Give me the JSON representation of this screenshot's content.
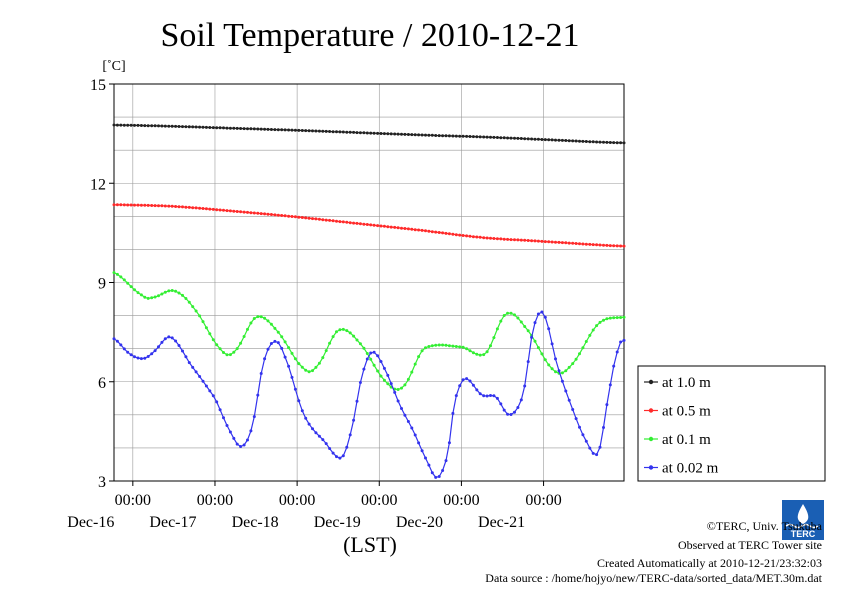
{
  "chart_data": {
    "type": "line",
    "title": "Soil Temperature / 2010-12-21",
    "ylabel": "[˚C]",
    "xlabel": "(LST)",
    "ylim": [
      3,
      15
    ],
    "xlim": [
      "2010-12-15 18:30",
      "2010-12-21 23:30"
    ],
    "yticks": [
      "15",
      "12",
      "9",
      "6",
      "3"
    ],
    "ytick_values": [
      15,
      12,
      9,
      6,
      3
    ],
    "xticks": [
      {
        "time": "2010-12-16 00:00",
        "label": "00:00",
        "date": "Dec-16"
      },
      {
        "time": "2010-12-17 00:00",
        "label": "00:00",
        "date": "Dec-17"
      },
      {
        "time": "2010-12-18 00:00",
        "label": "00:00",
        "date": "Dec-18"
      },
      {
        "time": "2010-12-19 00:00",
        "label": "00:00",
        "date": "Dec-19"
      },
      {
        "time": "2010-12-20 00:00",
        "label": "00:00",
        "date": "Dec-20"
      },
      {
        "time": "2010-12-21 00:00",
        "label": "00:00",
        "date": "Dec-21"
      }
    ],
    "grid": true,
    "legend_position": "right",
    "series": [
      {
        "name": "at 1.0 m",
        "color": "#222222",
        "points": [
          [
            "2010-12-15 18:30",
            13.76
          ],
          [
            "2010-12-16 12:00",
            13.72
          ],
          [
            "2010-12-17 06:00",
            13.66
          ],
          [
            "2010-12-18 00:00",
            13.6
          ],
          [
            "2010-12-18 18:00",
            13.53
          ],
          [
            "2010-12-19 12:00",
            13.46
          ],
          [
            "2010-12-20 06:00",
            13.4
          ],
          [
            "2010-12-21 00:00",
            13.32
          ],
          [
            "2010-12-21 23:30",
            13.22
          ]
        ]
      },
      {
        "name": "at 0.5 m",
        "color": "#ff2a2a",
        "points": [
          [
            "2010-12-15 18:30",
            11.35
          ],
          [
            "2010-12-16 12:00",
            11.3
          ],
          [
            "2010-12-17 06:00",
            11.15
          ],
          [
            "2010-12-18 00:00",
            10.98
          ],
          [
            "2010-12-18 18:00",
            10.78
          ],
          [
            "2010-12-19 12:00",
            10.58
          ],
          [
            "2010-12-20 06:00",
            10.36
          ],
          [
            "2010-12-21 00:00",
            10.24
          ],
          [
            "2010-12-21 23:30",
            10.1
          ]
        ]
      },
      {
        "name": "at 0.1 m",
        "color": "#33ee33",
        "points": [
          [
            "2010-12-15 18:30",
            9.3
          ],
          [
            "2010-12-16 03:00",
            8.6
          ],
          [
            "2010-12-16 06:00",
            8.55
          ],
          [
            "2010-12-16 12:00",
            8.75
          ],
          [
            "2010-12-16 18:00",
            8.2
          ],
          [
            "2010-12-17 02:00",
            6.95
          ],
          [
            "2010-12-17 06:00",
            6.95
          ],
          [
            "2010-12-17 12:00",
            7.95
          ],
          [
            "2010-12-17 18:00",
            7.55
          ],
          [
            "2010-12-18 02:00",
            6.4
          ],
          [
            "2010-12-18 06:00",
            6.5
          ],
          [
            "2010-12-18 12:00",
            7.55
          ],
          [
            "2010-12-18 18:00",
            7.2
          ],
          [
            "2010-12-19 02:00",
            6.0
          ],
          [
            "2010-12-19 07:00",
            5.85
          ],
          [
            "2010-12-19 13:00",
            7.0
          ],
          [
            "2010-12-20 00:00",
            7.05
          ],
          [
            "2010-12-20 07:00",
            6.85
          ],
          [
            "2010-12-20 13:00",
            8.05
          ],
          [
            "2010-12-20 19:00",
            7.6
          ],
          [
            "2010-12-21 03:00",
            6.35
          ],
          [
            "2010-12-21 08:00",
            6.5
          ],
          [
            "2010-12-21 16:00",
            7.75
          ],
          [
            "2010-12-21 23:30",
            7.95
          ]
        ]
      },
      {
        "name": "at 0.02 m",
        "color": "#3333ee",
        "points": [
          [
            "2010-12-15 18:30",
            7.3
          ],
          [
            "2010-12-15 23:00",
            6.85
          ],
          [
            "2010-12-16 03:00",
            6.7
          ],
          [
            "2010-12-16 06:00",
            6.9
          ],
          [
            "2010-12-16 11:00",
            7.35
          ],
          [
            "2010-12-16 17:00",
            6.5
          ],
          [
            "2010-12-17 00:00",
            5.5
          ],
          [
            "2010-12-17 05:00",
            4.4
          ],
          [
            "2010-12-17 08:00",
            4.05
          ],
          [
            "2010-12-17 11:00",
            4.7
          ],
          [
            "2010-12-17 14:00",
            6.5
          ],
          [
            "2010-12-17 17:00",
            7.2
          ],
          [
            "2010-12-17 20:00",
            6.85
          ],
          [
            "2010-12-18 02:00",
            5.0
          ],
          [
            "2010-12-18 08:00",
            4.2
          ],
          [
            "2010-12-18 13:00",
            3.7
          ],
          [
            "2010-12-18 16:00",
            4.6
          ],
          [
            "2010-12-18 19:00",
            6.2
          ],
          [
            "2010-12-18 22:00",
            6.9
          ],
          [
            "2010-12-19 02:00",
            6.3
          ],
          [
            "2010-12-19 06:00",
            5.3
          ],
          [
            "2010-12-19 10:00",
            4.5
          ],
          [
            "2010-12-19 14:00",
            3.6
          ],
          [
            "2010-12-19 17:00",
            3.1
          ],
          [
            "2010-12-19 20:00",
            3.8
          ],
          [
            "2010-12-19 22:00",
            5.4
          ],
          [
            "2010-12-20 01:00",
            6.1
          ],
          [
            "2010-12-20 06:00",
            5.6
          ],
          [
            "2010-12-20 10:00",
            5.55
          ],
          [
            "2010-12-20 14:00",
            5.0
          ],
          [
            "2010-12-20 18:00",
            5.6
          ],
          [
            "2010-12-20 21:00",
            7.6
          ],
          [
            "2010-12-21 00:00",
            8.05
          ],
          [
            "2010-12-21 04:00",
            6.5
          ],
          [
            "2010-12-21 08:00",
            5.3
          ],
          [
            "2010-12-21 12:00",
            4.3
          ],
          [
            "2010-12-21 16:00",
            3.85
          ],
          [
            "2010-12-21 19:00",
            5.6
          ],
          [
            "2010-12-21 21:30",
            6.9
          ],
          [
            "2010-12-21 22:30",
            7.2
          ],
          [
            "2010-12-21 23:30",
            7.25
          ]
        ]
      }
    ]
  },
  "credits": {
    "copyright": "©TERC, Univ. Tsukuba",
    "site": "Observed at TERC Tower site",
    "created": "Created Automatically at 2010-12-21/23:32:03",
    "source": "Data source : /home/hojyo/new/TERC-data/sorted_data/MET.30m.dat"
  },
  "logo": {
    "text": "TERC"
  }
}
